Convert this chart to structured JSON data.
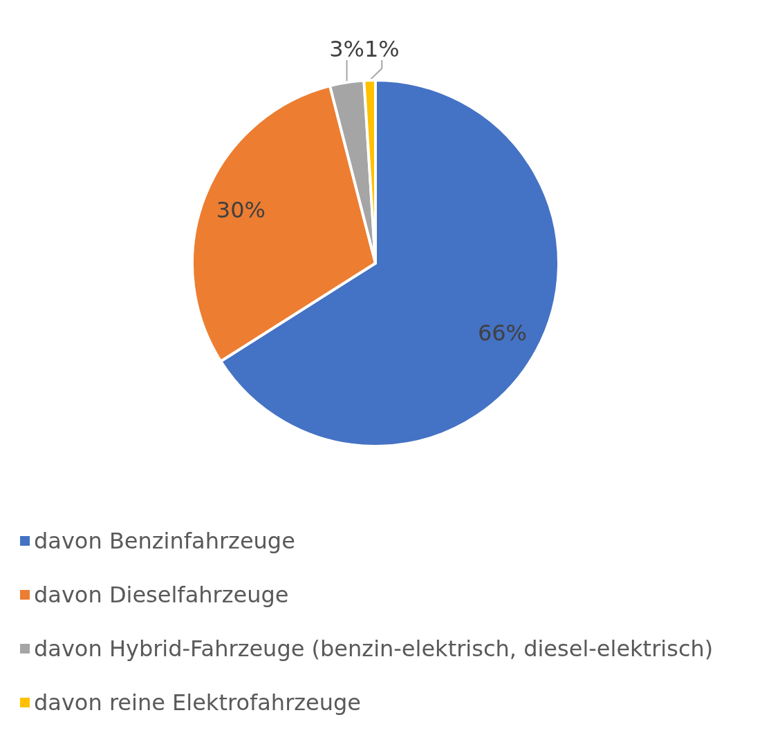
{
  "chart_data": {
    "type": "pie",
    "categories": [
      "davon Benzinfahrzeuge",
      "davon Dieselfahrzeuge",
      "davon Hybrid-Fahrzeuge (benzin-elektrisch, diesel-elektrisch)",
      "davon reine Elektrofahrzeuge"
    ],
    "values": [
      66,
      30,
      3,
      1
    ],
    "colors": [
      "#4472c4",
      "#ed7d31",
      "#a5a5a5",
      "#ffc000"
    ],
    "value_labels": [
      "66%",
      "30%",
      "3%",
      "1%"
    ],
    "legend": "bottom"
  }
}
